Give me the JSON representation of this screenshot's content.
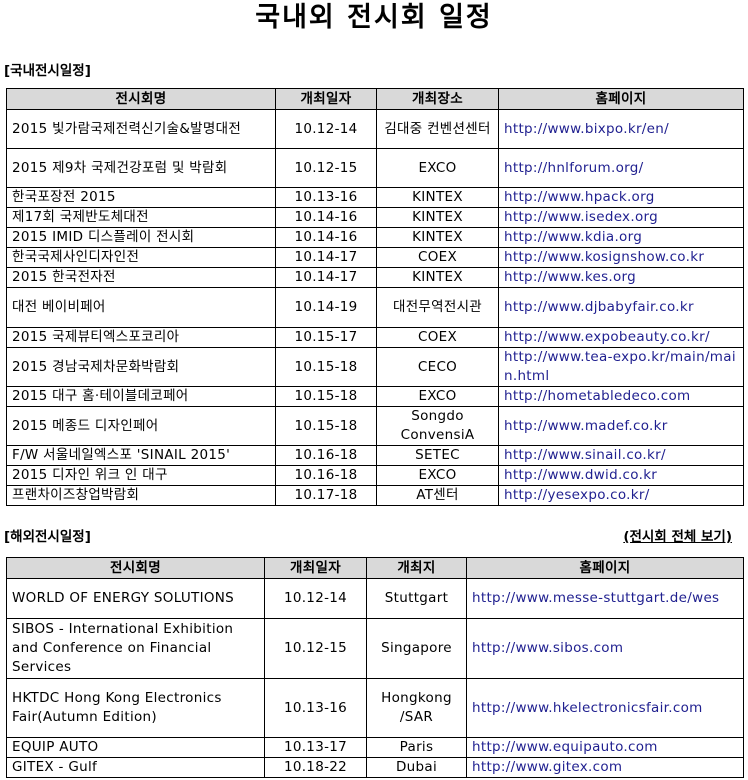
{
  "title": "국내외 전시회 일정",
  "domestic": {
    "label": "[국내전시일정]",
    "headers": [
      "전시회명",
      "개최일자",
      "개최장소",
      "홈페이지"
    ],
    "rows": [
      [
        "2015 빛가람국제전력신기술&발명대전",
        "10.12-14",
        "김대중 컨벤션센터",
        "http://www.bixpo.kr/en/"
      ],
      [
        "2015 제9차 국제건강포럼 및 박람회",
        "10.12-15",
        "EXCO",
        "http://hnlforum.org/"
      ],
      [
        "한국포장전 2015",
        "10.13-16",
        "KINTEX",
        "http://www.hpack.org"
      ],
      [
        "제17회 국제반도체대전",
        "10.14-16",
        "KINTEX",
        "http://www.isedex.org"
      ],
      [
        "2015 IMID 디스플레이 전시회",
        "10.14-16",
        "KINTEX",
        "http://www.kdia.org"
      ],
      [
        "한국국제사인디자인전",
        "10.14-17",
        "COEX",
        "http://www.kosignshow.co.kr"
      ],
      [
        "2015 한국전자전",
        "10.14-17",
        "KINTEX",
        "http://www.kes.org"
      ],
      [
        "대전 베이비페어",
        "10.14-19",
        "대전무역전시관",
        "http://www.djbabyfair.co.kr"
      ],
      [
        "2015 국제뷰티엑스포코리아",
        "10.15-17",
        "COEX",
        "http://www.expobeauty.co.kr/"
      ],
      [
        "2015 경남국제차문화박람회",
        "10.15-18",
        "CECO",
        "http://www.tea-expo.kr/main/main.html"
      ],
      [
        "2015 대구 홈·테이블데코페어",
        "10.15-18",
        "EXCO",
        "http://hometabledeco.com"
      ],
      [
        "2015 메종드 디자인페어",
        "10.15-18",
        "Songdo ConvensiA",
        "http://www.madef.co.kr"
      ],
      [
        "F/W 서울네일엑스포 'SINAIL 2015'",
        "10.16-18",
        "SETEC",
        "http://www.sinail.co.kr/"
      ],
      [
        "2015 디자인 위크 인 대구",
        "10.16-18",
        "EXCO",
        "http://www.dwid.co.kr"
      ],
      [
        "프랜차이즈창업박람회",
        "10.17-18",
        "AT센터",
        "http://yesexpo.co.kr/"
      ]
    ]
  },
  "overseas": {
    "label": "[해외전시일정]",
    "view_all": "(전시회 전체 보기)",
    "headers": [
      "전시회명",
      "개최일자",
      "개최지",
      "홈페이지"
    ],
    "rows": [
      [
        "WORLD OF ENERGY SOLUTIONS",
        "10.12-14",
        "Stuttgart",
        "http://www.messe-stuttgart.de/wes"
      ],
      [
        "SIBOS - International Exhibition and Conference on Financial Services",
        "10.12-15",
        "Singapore",
        "http://www.sibos.com"
      ],
      [
        "HKTDC Hong Kong Electronics Fair(Autumn Edition)",
        "10.13-16",
        "Hongkong /SAR",
        "http://www.hkelectronicsfair.com"
      ],
      [
        "EQUIP AUTO",
        "10.13-17",
        "Paris",
        "http://www.equipauto.com"
      ],
      [
        "GITEX - Gulf",
        "10.18-22",
        "Dubai",
        "http://www.gitex.com"
      ]
    ]
  }
}
